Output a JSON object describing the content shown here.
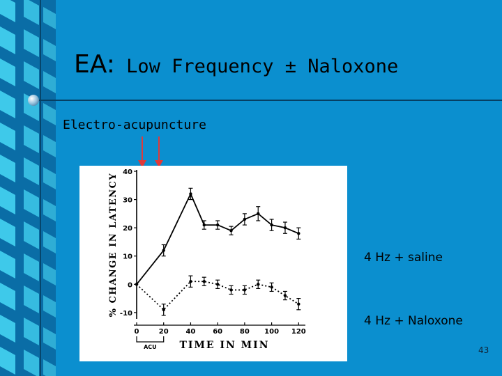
{
  "slide": {
    "title_prefix": "EA:",
    "title_rest": " Low Frequency ± Naloxone",
    "subtitle": "Electro-acupuncture",
    "slide_number": "43",
    "colors": {
      "background": "#0b8fcf",
      "arrow": "#e03a3a",
      "strip_light": "#3ec9ea",
      "strip_dark": "#0a6da6"
    }
  },
  "legend": {
    "saline": "4 Hz + saline",
    "naloxone": "4 Hz + Naloxone"
  },
  "chart_data": {
    "type": "line",
    "ylabel": "% CHANGE IN LATENCY",
    "xlabel": "TIME IN MIN",
    "bracket_label": "ACU",
    "x": [
      0,
      20,
      40,
      50,
      60,
      70,
      80,
      90,
      100,
      110,
      120
    ],
    "xlim": [
      0,
      125
    ],
    "ylim": [
      -12,
      40
    ],
    "xticks": [
      0,
      20,
      40,
      60,
      80,
      100,
      120
    ],
    "xtick_labels": [
      "0",
      "20",
      "40",
      "60",
      "80",
      "100",
      "120"
    ],
    "yticks": [
      -10,
      0,
      10,
      20,
      30,
      40
    ],
    "ytick_labels": [
      "-10",
      "0",
      "10",
      "20",
      "30",
      "40"
    ],
    "series": [
      {
        "name": "4 Hz + saline",
        "style": "solid",
        "values": [
          0,
          12,
          32,
          21,
          21,
          19,
          23,
          25,
          21,
          20,
          18
        ],
        "errors": [
          0,
          2,
          2,
          1.5,
          1.5,
          1.5,
          2,
          2.5,
          2,
          2,
          2
        ]
      },
      {
        "name": "4 Hz + Naloxone",
        "style": "dotted",
        "values": [
          0,
          -9,
          1,
          1,
          0,
          -2,
          -2,
          0,
          -1,
          -4,
          -7
        ],
        "errors": [
          0,
          2,
          2,
          1.5,
          1.5,
          1.5,
          1.5,
          1.5,
          1.5,
          1.5,
          2
        ]
      }
    ]
  }
}
